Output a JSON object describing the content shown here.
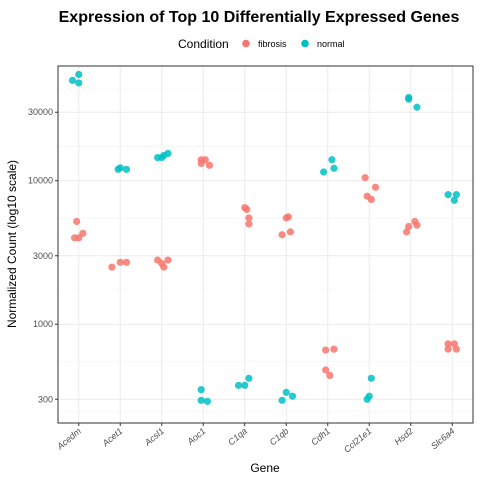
{
  "chart_data": {
    "type": "scatter",
    "title": "Expression of Top 10 Differentially Expressed Genes",
    "xlabel": "Gene",
    "ylabel": "Normalized Count (log10 scale)",
    "y_scale": "log10",
    "ylim": [
      205,
      63000
    ],
    "y_ticks": [
      300,
      1000,
      3000,
      10000,
      30000
    ],
    "y_tick_labels": [
      "300",
      "1000",
      "3000",
      "10000",
      "30000"
    ],
    "grid": true,
    "legend": {
      "title": "Condition",
      "position": "top"
    },
    "categories": [
      "Acedm",
      "Acet1",
      "Acsl1",
      "Aoc1",
      "C1qa",
      "C1qb",
      "Cdh1",
      "Ccl21e1",
      "Hsd2",
      "Slc6a4"
    ],
    "series": [
      {
        "name": "fibrosis",
        "color": "#F8766D",
        "points": [
          {
            "gene": "Acedm",
            "offset": -0.05,
            "y": 5200
          },
          {
            "gene": "Acedm",
            "offset": -0.1,
            "y": 4000
          },
          {
            "gene": "Acedm",
            "offset": 0.0,
            "y": 4000
          },
          {
            "gene": "Acedm",
            "offset": 0.1,
            "y": 4300
          },
          {
            "gene": "Acet1",
            "offset": -0.2,
            "y": 2500
          },
          {
            "gene": "Acet1",
            "offset": 0.0,
            "y": 2700
          },
          {
            "gene": "Acet1",
            "offset": 0.15,
            "y": 2700
          },
          {
            "gene": "Acsl1",
            "offset": -0.1,
            "y": 2800
          },
          {
            "gene": "Acsl1",
            "offset": 0.0,
            "y": 2650
          },
          {
            "gene": "Acsl1",
            "offset": 0.05,
            "y": 2500
          },
          {
            "gene": "Acsl1",
            "offset": 0.15,
            "y": 2800
          },
          {
            "gene": "Aoc1",
            "offset": -0.05,
            "y": 14000
          },
          {
            "gene": "Aoc1",
            "offset": 0.05,
            "y": 14000
          },
          {
            "gene": "Aoc1",
            "offset": -0.05,
            "y": 13200
          },
          {
            "gene": "Aoc1",
            "offset": 0.15,
            "y": 12800
          },
          {
            "gene": "C1qa",
            "offset": 0.0,
            "y": 6500
          },
          {
            "gene": "C1qa",
            "offset": 0.05,
            "y": 6300
          },
          {
            "gene": "C1qa",
            "offset": 0.1,
            "y": 5500
          },
          {
            "gene": "C1qa",
            "offset": 0.1,
            "y": 5000
          },
          {
            "gene": "C1qb",
            "offset": -0.1,
            "y": 4200
          },
          {
            "gene": "C1qb",
            "offset": 0.0,
            "y": 5500
          },
          {
            "gene": "C1qb",
            "offset": 0.05,
            "y": 5600
          },
          {
            "gene": "C1qb",
            "offset": 0.1,
            "y": 4400
          },
          {
            "gene": "Cdh1",
            "offset": -0.05,
            "y": 660
          },
          {
            "gene": "Cdh1",
            "offset": 0.15,
            "y": 670
          },
          {
            "gene": "Cdh1",
            "offset": -0.05,
            "y": 480
          },
          {
            "gene": "Cdh1",
            "offset": 0.05,
            "y": 440
          },
          {
            "gene": "Ccl21e1",
            "offset": -0.1,
            "y": 10500
          },
          {
            "gene": "Ccl21e1",
            "offset": 0.15,
            "y": 9000
          },
          {
            "gene": "Ccl21e1",
            "offset": -0.05,
            "y": 7800
          },
          {
            "gene": "Ccl21e1",
            "offset": 0.05,
            "y": 7400
          },
          {
            "gene": "Hsd2",
            "offset": -0.1,
            "y": 4400
          },
          {
            "gene": "Hsd2",
            "offset": -0.05,
            "y": 4800
          },
          {
            "gene": "Hsd2",
            "offset": 0.1,
            "y": 5200
          },
          {
            "gene": "Hsd2",
            "offset": 0.15,
            "y": 4900
          },
          {
            "gene": "Slc6a4",
            "offset": -0.1,
            "y": 730
          },
          {
            "gene": "Slc6a4",
            "offset": 0.05,
            "y": 730
          },
          {
            "gene": "Slc6a4",
            "offset": -0.1,
            "y": 670
          },
          {
            "gene": "Slc6a4",
            "offset": 0.1,
            "y": 670
          }
        ]
      },
      {
        "name": "normal",
        "color": "#00BFC4",
        "points": [
          {
            "gene": "Acedm",
            "offset": -0.15,
            "y": 50000
          },
          {
            "gene": "Acedm",
            "offset": 0.0,
            "y": 55000
          },
          {
            "gene": "Acedm",
            "offset": 0.0,
            "y": 48000
          },
          {
            "gene": "Acet1",
            "offset": -0.05,
            "y": 12000
          },
          {
            "gene": "Acet1",
            "offset": 0.0,
            "y": 12300
          },
          {
            "gene": "Acet1",
            "offset": 0.15,
            "y": 12000
          },
          {
            "gene": "Acsl1",
            "offset": -0.1,
            "y": 14500
          },
          {
            "gene": "Acsl1",
            "offset": 0.0,
            "y": 14500
          },
          {
            "gene": "Acsl1",
            "offset": 0.05,
            "y": 15000
          },
          {
            "gene": "Acsl1",
            "offset": 0.15,
            "y": 15500
          },
          {
            "gene": "Aoc1",
            "offset": -0.05,
            "y": 350
          },
          {
            "gene": "Aoc1",
            "offset": -0.05,
            "y": 295
          },
          {
            "gene": "Aoc1",
            "offset": 0.1,
            "y": 290
          },
          {
            "gene": "C1qa",
            "offset": -0.15,
            "y": 375
          },
          {
            "gene": "C1qa",
            "offset": 0.0,
            "y": 375
          },
          {
            "gene": "C1qa",
            "offset": 0.1,
            "y": 420
          },
          {
            "gene": "C1qb",
            "offset": -0.1,
            "y": 295
          },
          {
            "gene": "C1qb",
            "offset": 0.0,
            "y": 335
          },
          {
            "gene": "C1qb",
            "offset": 0.15,
            "y": 315
          },
          {
            "gene": "Cdh1",
            "offset": -0.1,
            "y": 11500
          },
          {
            "gene": "Cdh1",
            "offset": 0.1,
            "y": 14000
          },
          {
            "gene": "Cdh1",
            "offset": 0.15,
            "y": 12200
          },
          {
            "gene": "Ccl21e1",
            "offset": -0.05,
            "y": 300
          },
          {
            "gene": "Ccl21e1",
            "offset": 0.0,
            "y": 315
          },
          {
            "gene": "Ccl21e1",
            "offset": 0.05,
            "y": 420
          },
          {
            "gene": "Hsd2",
            "offset": -0.05,
            "y": 38000
          },
          {
            "gene": "Hsd2",
            "offset": -0.05,
            "y": 37000
          },
          {
            "gene": "Hsd2",
            "offset": 0.15,
            "y": 32500
          },
          {
            "gene": "Slc6a4",
            "offset": -0.1,
            "y": 8000
          },
          {
            "gene": "Slc6a4",
            "offset": 0.1,
            "y": 8000
          },
          {
            "gene": "Slc6a4",
            "offset": 0.05,
            "y": 7300
          }
        ]
      }
    ]
  }
}
